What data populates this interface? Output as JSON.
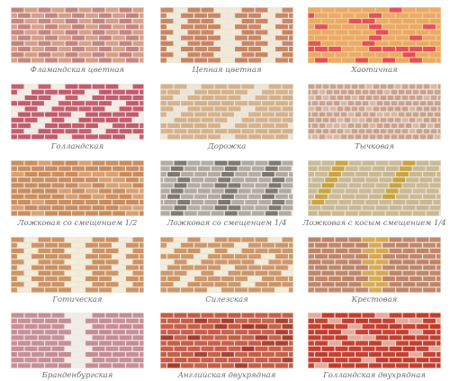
{
  "items": [
    {
      "label": "Фламандская цветная"
    },
    {
      "label": "Цепная цветная"
    },
    {
      "label": "Хаотичная"
    },
    {
      "label": "Голландская"
    },
    {
      "label": "Дорожка"
    },
    {
      "label": "Тычковая"
    },
    {
      "label": "Ложковая со смещением 1/2"
    },
    {
      "label": "Ложковая со смещением 1/4"
    },
    {
      "label": "Ложковая с косым смещением 1/4"
    },
    {
      "label": "Готическая"
    },
    {
      "label": "Силезская"
    },
    {
      "label": "Крестовая"
    },
    {
      "label": "Бранденбургская"
    },
    {
      "label": "Английская двухрядная"
    },
    {
      "label": "Голландская двухрядная"
    }
  ]
}
